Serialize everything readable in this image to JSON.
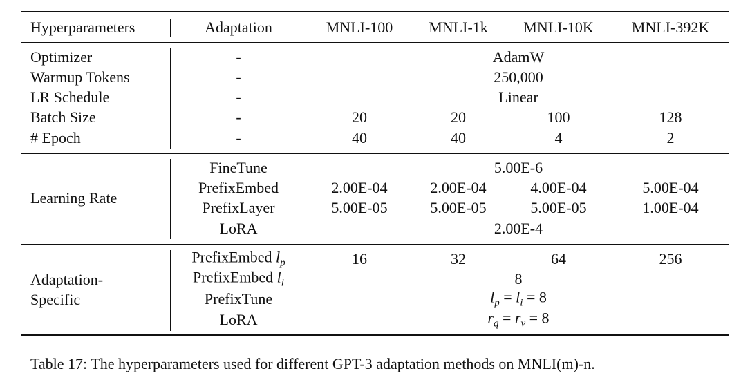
{
  "table": {
    "header": [
      "Hyperparameters",
      "Adaptation",
      "MNLI-100",
      "MNLI-1k",
      "MNLI-10K",
      "MNLI-392K"
    ],
    "sections": [
      {
        "rows": [
          {
            "param": "Optimizer",
            "adaptation": "-",
            "values": [
              "AdamW"
            ]
          },
          {
            "param": "Warmup Tokens",
            "adaptation": "-",
            "values": [
              "250,000"
            ]
          },
          {
            "param": "LR Schedule",
            "adaptation": "-",
            "values": [
              "Linear"
            ]
          },
          {
            "param": "Batch Size",
            "adaptation": "-",
            "values": [
              20,
              20,
              100,
              128
            ]
          },
          {
            "param": "# Epoch",
            "adaptation": "-",
            "values": [
              40,
              40,
              4,
              2
            ]
          }
        ]
      },
      {
        "param": [
          "Learning Rate"
        ],
        "rows": [
          {
            "adaptation": "FineTune",
            "values": [
              "5.00E-6"
            ]
          },
          {
            "adaptation": "PrefixEmbed",
            "values": [
              "2.00E-04",
              "2.00E-04",
              "4.00E-04",
              "5.00E-04"
            ]
          },
          {
            "adaptation": "PrefixLayer",
            "values": [
              "5.00E-05",
              "5.00E-05",
              "5.00E-05",
              "1.00E-04"
            ]
          },
          {
            "adaptation": "LoRA",
            "values": [
              "2.00E-4"
            ]
          }
        ]
      },
      {
        "param": [
          "Adaptation-",
          "Specific"
        ],
        "rows": [
          {
            "adaptation": [
              {
                "text": "PrefixEmbed "
              },
              {
                "text": "l",
                "style": "italic"
              },
              {
                "text": "p",
                "style": "sub"
              }
            ],
            "values": [
              16,
              32,
              64,
              256
            ]
          },
          {
            "adaptation": [
              {
                "text": "PrefixEmbed "
              },
              {
                "text": "l",
                "style": "italic"
              },
              {
                "text": "i",
                "style": "sub"
              }
            ],
            "values": [
              8
            ]
          },
          {
            "adaptation": "PrefixTune",
            "values": [
              [
                {
                  "text": "l",
                  "style": "italic"
                },
                {
                  "text": "p",
                  "style": "sub"
                },
                {
                  "text": " = "
                },
                {
                  "text": "l",
                  "style": "italic"
                },
                {
                  "text": "i",
                  "style": "sub"
                },
                {
                  "text": " = 8"
                }
              ]
            ]
          },
          {
            "adaptation": "LoRA",
            "values": [
              [
                {
                  "text": "r",
                  "style": "italic"
                },
                {
                  "text": "q",
                  "style": "sub"
                },
                {
                  "text": " = "
                },
                {
                  "text": "r",
                  "style": "italic"
                },
                {
                  "text": "v",
                  "style": "sub"
                },
                {
                  "text": " = 8"
                }
              ]
            ]
          }
        ]
      }
    ]
  },
  "caption": "Table 17: The hyperparameters used for different GPT-3 adaptation methods on MNLI(m)-n."
}
